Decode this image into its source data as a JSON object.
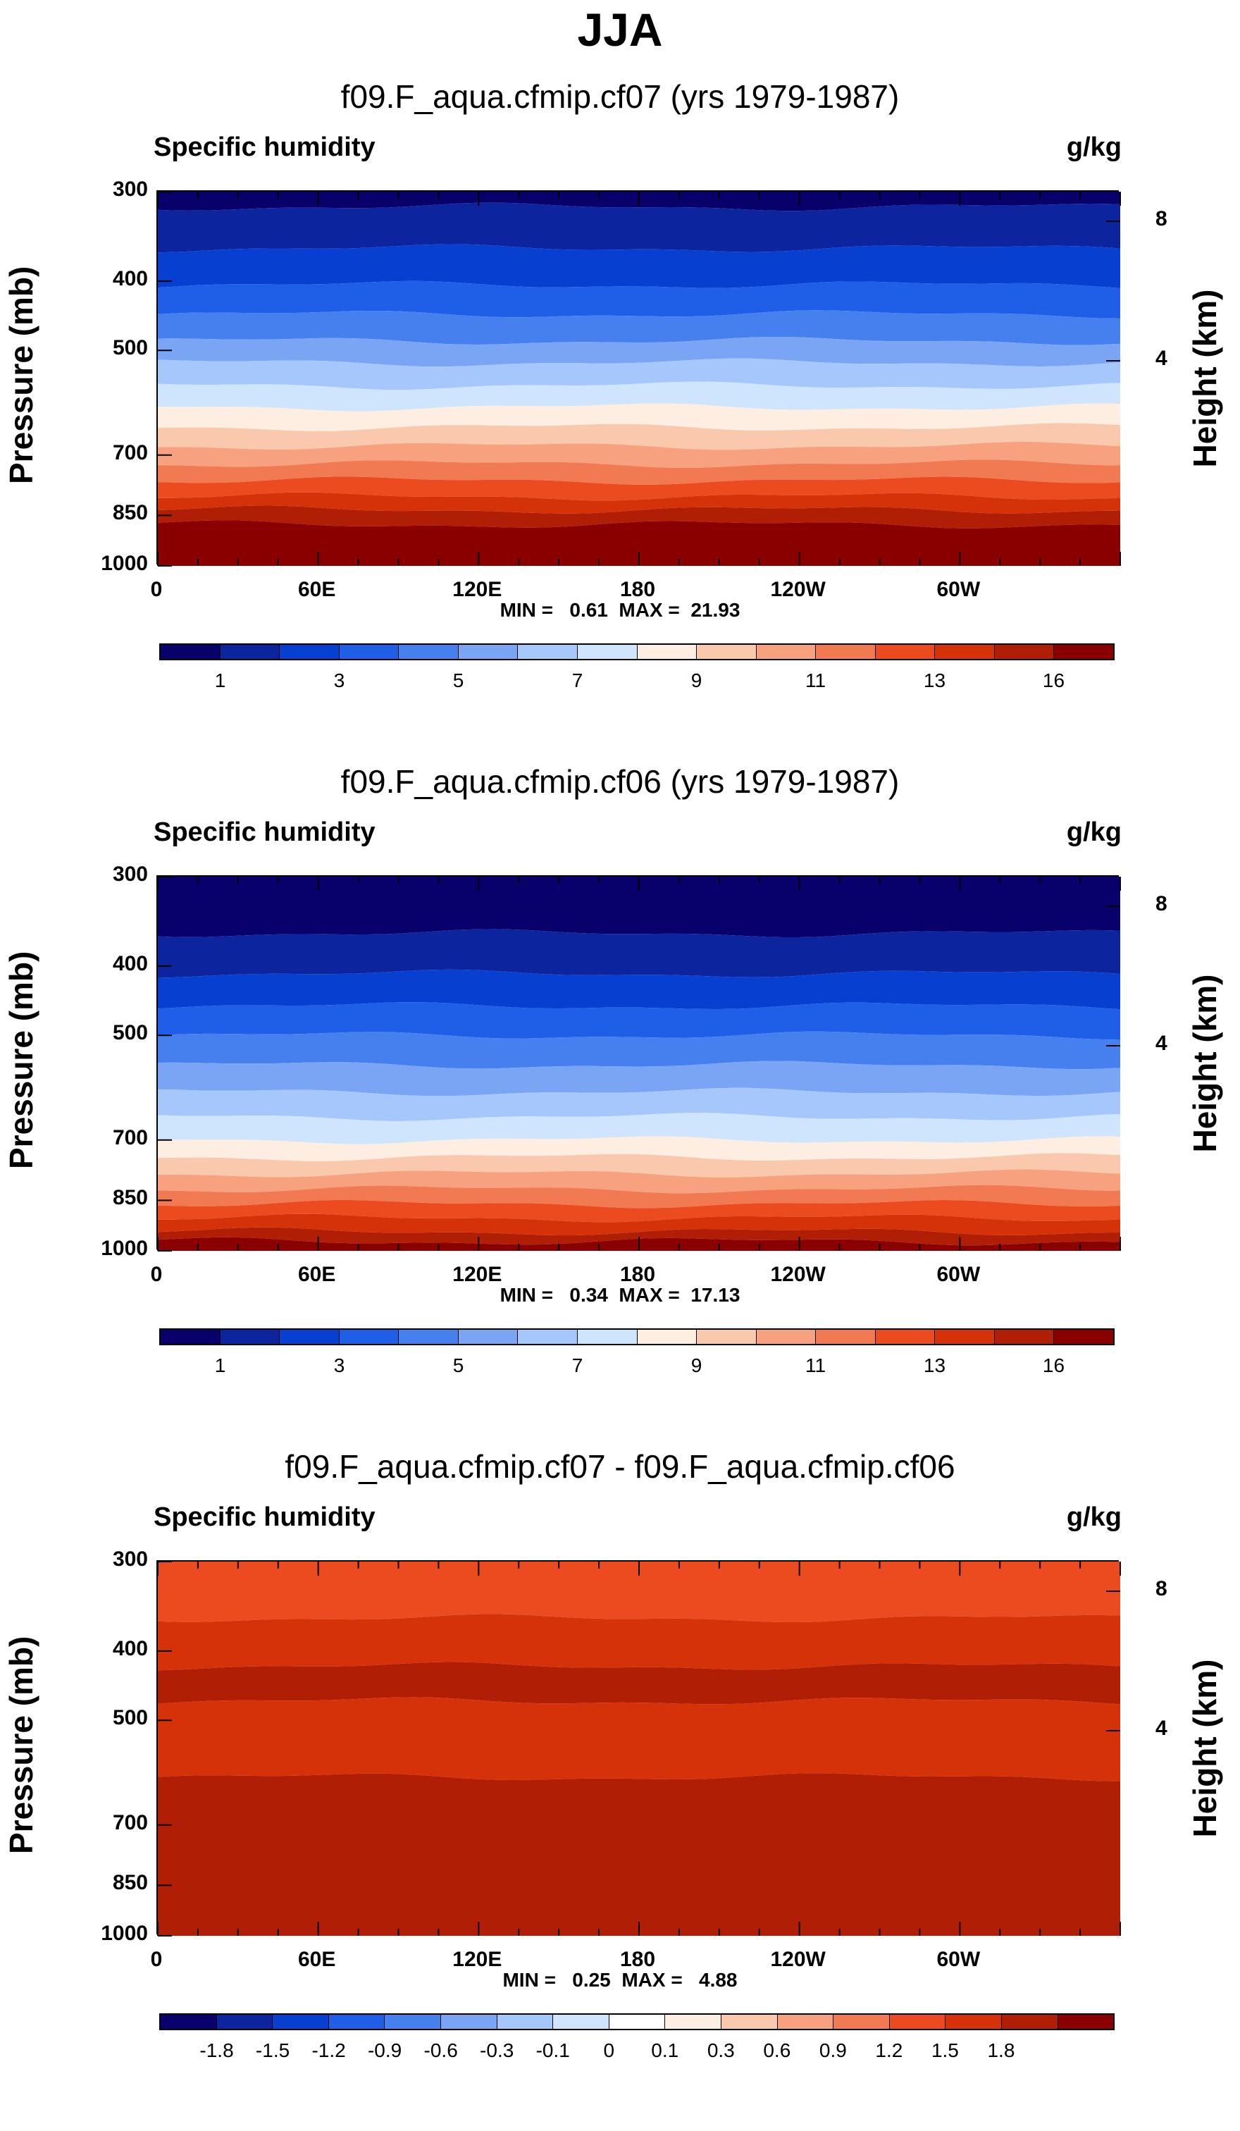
{
  "title": "JJA",
  "axis": {
    "left_label": "Pressure (mb)",
    "right_label": "Height (km)",
    "y_ticks": [
      "300",
      "400",
      "500",
      "700",
      "850",
      "1000"
    ],
    "right_ticks": [
      "8",
      "4"
    ],
    "x_ticks": [
      "0",
      "60E",
      "120E",
      "180",
      "120W",
      "60W"
    ]
  },
  "colors": {
    "seq16": [
      "#08006b",
      "#0d249f",
      "#0740d0",
      "#1f5fe8",
      "#4580ee",
      "#7aa4f4",
      "#a6c7fb",
      "#cfe4fd",
      "#fdeee1",
      "#f9c8ad",
      "#f7a17f",
      "#f27a52",
      "#ec4a1f",
      "#d5320a",
      "#b01e06",
      "#8a0000"
    ],
    "div17": [
      "#08006b",
      "#0d249f",
      "#0740d0",
      "#1f5fe8",
      "#4580ee",
      "#7aa4f4",
      "#a6c7fb",
      "#cfe4fd",
      "#ffffff",
      "#fdeee1",
      "#f9c8ad",
      "#f7a17f",
      "#f27a52",
      "#ec4a1f",
      "#d5320a",
      "#b01e06",
      "#8a0000"
    ]
  },
  "chart_data": [
    {
      "type": "heatmap",
      "title": "f09.F_aqua.cfmip.cf07 (yrs 1979-1987)",
      "left_label": "Specific humidity",
      "units": "g/kg",
      "minmax": "MIN =   0.61  MAX =  21.93",
      "min": 0.61,
      "max": 21.93,
      "colorbar_labels": [
        "1",
        "3",
        "5",
        "7",
        "9",
        "11",
        "13",
        "16"
      ],
      "colorbar_levels": [
        0.5,
        1,
        2,
        3,
        4,
        5,
        6,
        7,
        8,
        9,
        10,
        11,
        12,
        13,
        14,
        16
      ],
      "xlim": [
        0,
        360
      ],
      "ylim_mb": [
        300,
        1000
      ],
      "level_boundaries_mb": [
        300,
        315,
        360,
        405,
        445,
        485,
        520,
        560,
        600,
        640,
        680,
        720,
        760,
        800,
        835,
        875,
        1000
      ],
      "layer_colors": [
        "seq16"
      ]
    },
    {
      "type": "heatmap",
      "title": "f09.F_aqua.cfmip.cf06 (yrs 1979-1987)",
      "left_label": "Specific humidity",
      "units": "g/kg",
      "minmax": "MIN =   0.34  MAX =  17.13",
      "min": 0.34,
      "max": 17.13,
      "colorbar_labels": [
        "1",
        "3",
        "5",
        "7",
        "9",
        "11",
        "13",
        "16"
      ],
      "colorbar_levels": [
        0.5,
        1,
        2,
        3,
        4,
        5,
        6,
        7,
        8,
        9,
        10,
        11,
        12,
        13,
        14,
        16
      ],
      "xlim": [
        0,
        360
      ],
      "ylim_mb": [
        300,
        1000
      ],
      "level_boundaries_mb": [
        300,
        360,
        410,
        455,
        500,
        550,
        600,
        650,
        700,
        740,
        780,
        820,
        860,
        900,
        940,
        970,
        1000
      ],
      "layer_colors": [
        "seq16"
      ]
    },
    {
      "type": "heatmap",
      "title": "f09.F_aqua.cfmip.cf07 - f09.F_aqua.cfmip.cf06",
      "left_label": "Specific humidity",
      "units": "g/kg",
      "minmax": "MIN =   0.25  MAX =   4.88",
      "min": 0.25,
      "max": 4.88,
      "colorbar_labels": [
        "-1.8",
        "-1.5",
        "-1.2",
        "-0.9",
        "-0.6",
        "-0.3",
        "-0.1",
        "0",
        "0.1",
        "0.3",
        "0.6",
        "0.9",
        "1.2",
        "1.5",
        "1.8"
      ],
      "colorbar_levels": [
        -1.8,
        -1.5,
        -1.2,
        -0.9,
        -0.6,
        -0.3,
        -0.1,
        0,
        0.1,
        0.3,
        0.6,
        0.9,
        1.2,
        1.5,
        1.8
      ],
      "xlim": [
        0,
        360
      ],
      "ylim_mb": [
        300,
        1000
      ],
      "level_boundaries_mb": [
        300,
        360,
        420,
        470,
        600,
        1000
      ],
      "layer_values": [
        1.2,
        1.5,
        1.8,
        1.5,
        2.0
      ]
    }
  ]
}
